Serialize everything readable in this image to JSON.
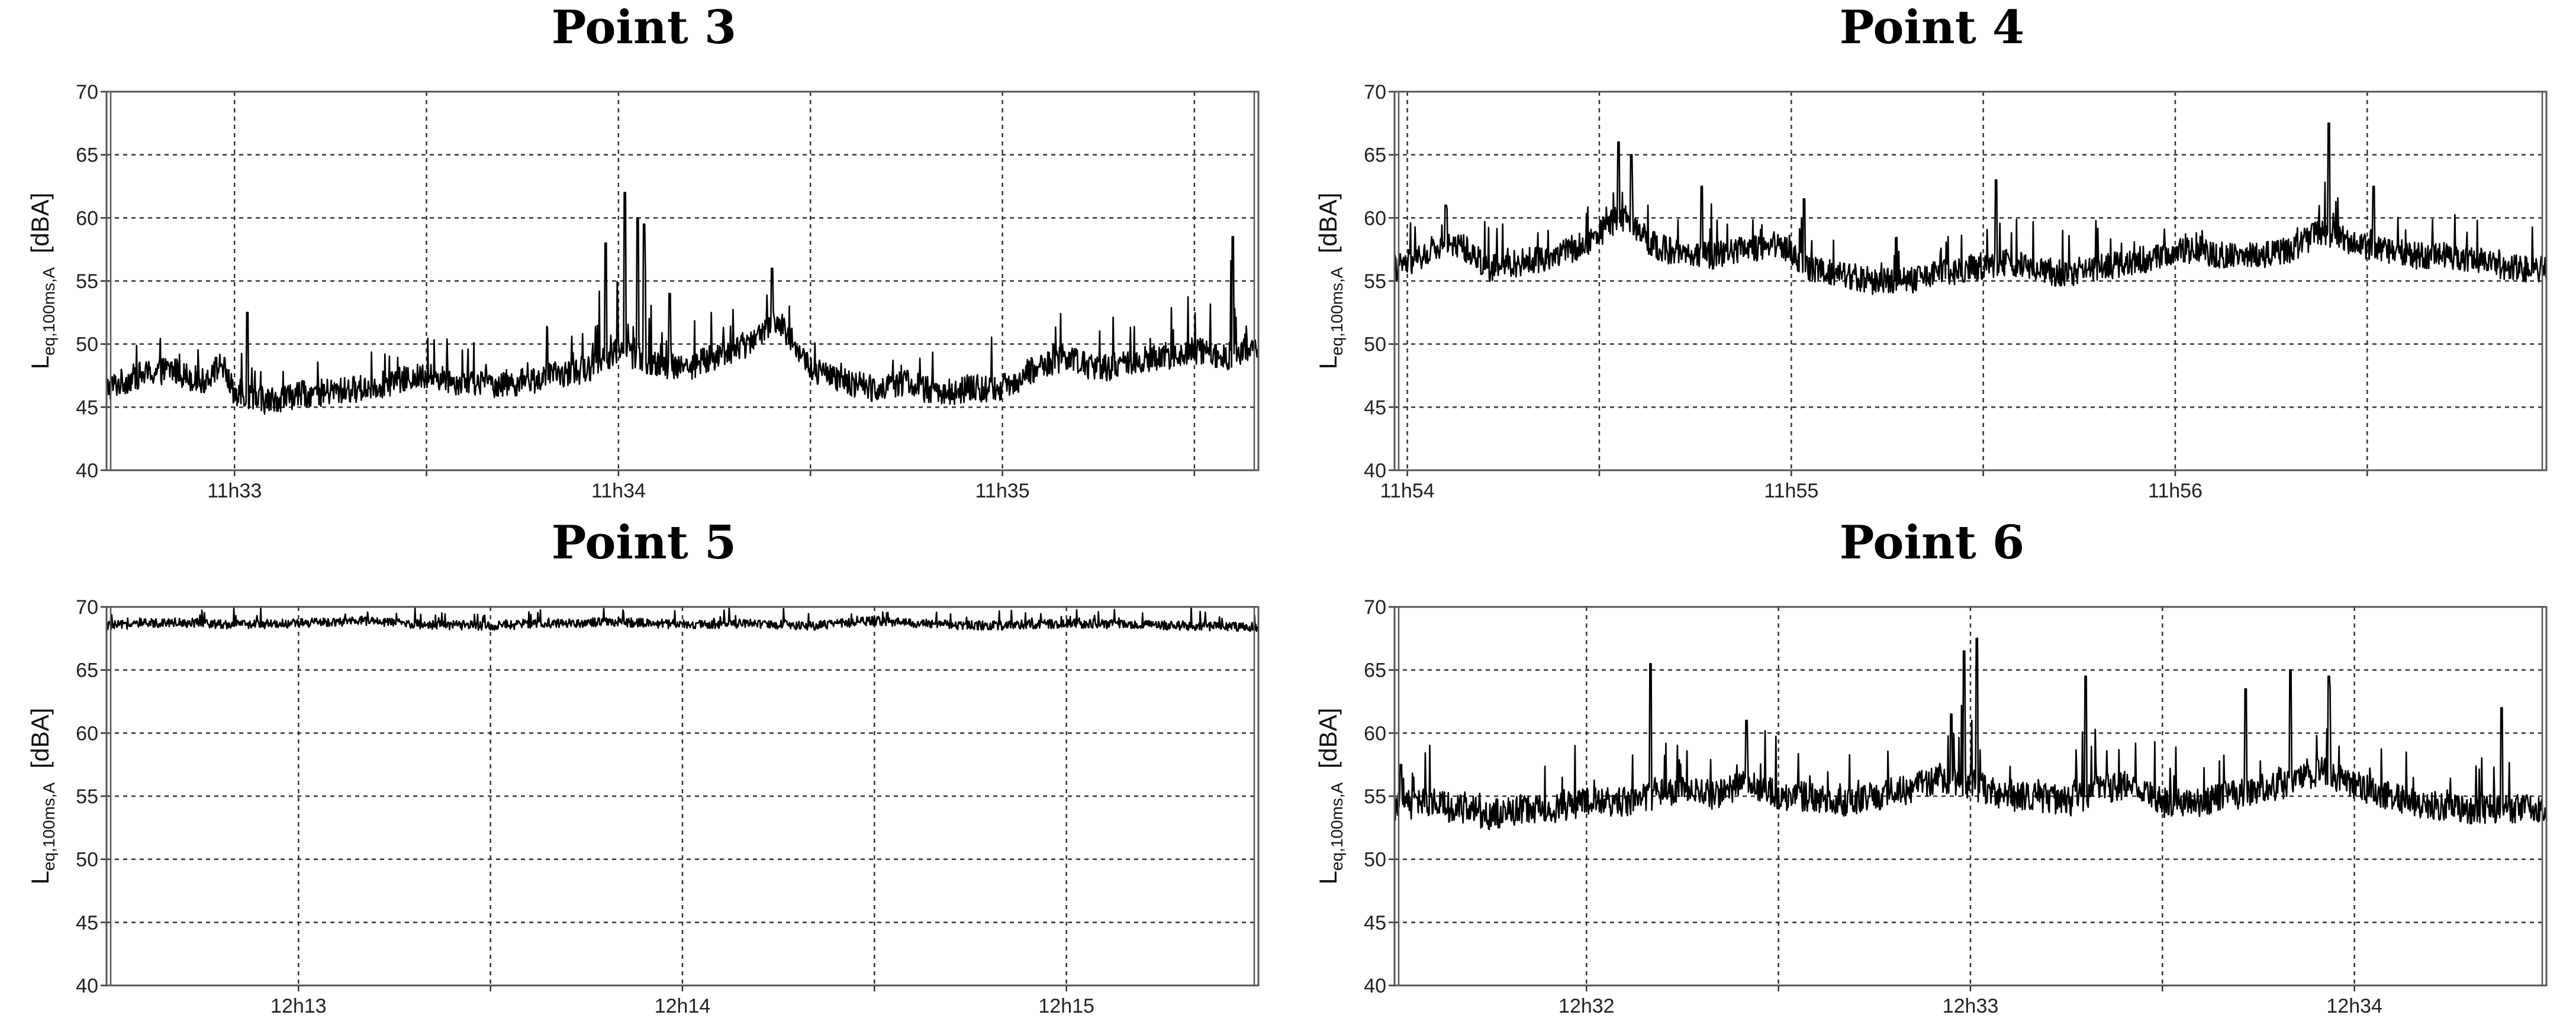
{
  "chart_data": [
    {
      "type": "line",
      "title": "Point 3",
      "ylabel_main": "L",
      "ylabel_sub": "eq,100ms,A",
      "ylabel_unit": "[dBA]",
      "ylim": [
        40,
        70
      ],
      "yticks": [
        "40",
        "45",
        "50",
        "55",
        "60",
        "65",
        "70"
      ],
      "xlim": [
        0,
        180
      ],
      "xticks": [
        {
          "pos": 20,
          "label": "11h33"
        },
        {
          "pos": 80,
          "label": "11h34"
        },
        {
          "pos": 140,
          "label": "11h35"
        }
      ],
      "grid": true,
      "series": [
        {
          "points": [
            [
              0,
              46.5
            ],
            [
              5,
              47.5
            ],
            [
              10,
              48
            ],
            [
              15,
              47
            ],
            [
              18,
              48.5
            ],
            [
              20,
              46
            ],
            [
              25,
              45.5
            ],
            [
              30,
              46
            ],
            [
              35,
              46.2
            ],
            [
              40,
              46.5
            ],
            [
              45,
              47
            ],
            [
              50,
              47.5
            ],
            [
              55,
              47
            ],
            [
              60,
              46.8
            ],
            [
              65,
              47
            ],
            [
              70,
              47.5
            ],
            [
              75,
              48
            ],
            [
              80,
              49.5
            ],
            [
              85,
              48.5
            ],
            [
              90,
              48
            ],
            [
              95,
              49
            ],
            [
              100,
              50
            ],
            [
              105,
              52
            ],
            [
              110,
              48
            ],
            [
              115,
              47
            ],
            [
              120,
              46.5
            ],
            [
              125,
              47
            ],
            [
              130,
              46
            ],
            [
              135,
              46.5
            ],
            [
              140,
              46.5
            ],
            [
              145,
              48
            ],
            [
              150,
              49
            ],
            [
              155,
              48
            ],
            [
              160,
              48.5
            ],
            [
              165,
              49
            ],
            [
              170,
              49.5
            ],
            [
              175,
              49
            ],
            [
              180,
              50
            ]
          ]
        }
      ],
      "peaks": [
        [
          22,
          52.5
        ],
        [
          78,
          58
        ],
        [
          81,
          62
        ],
        [
          83,
          60
        ],
        [
          84,
          59.5
        ],
        [
          88,
          54
        ],
        [
          104,
          56
        ],
        [
          148,
          50
        ],
        [
          176,
          58.5
        ]
      ],
      "noise": [
        0.9,
        0.9,
        0.9,
        0.9
      ]
    },
    {
      "type": "line",
      "title": "Point 4",
      "ylabel_main": "L",
      "ylabel_sub": "eq,100ms,A",
      "ylabel_unit": "[dBA]",
      "ylim": [
        40,
        70
      ],
      "yticks": [
        "40",
        "45",
        "50",
        "55",
        "60",
        "65",
        "70"
      ],
      "xlim": [
        0,
        180
      ],
      "xticks": [
        {
          "pos": 2,
          "label": "11h54"
        },
        {
          "pos": 62,
          "label": "11h55"
        },
        {
          "pos": 122,
          "label": "11h56"
        }
      ],
      "grid": true,
      "series": [
        {
          "points": [
            [
              0,
              56
            ],
            [
              5,
              57
            ],
            [
              10,
              58
            ],
            [
              15,
              56
            ],
            [
              20,
              56.5
            ],
            [
              25,
              57
            ],
            [
              30,
              58
            ],
            [
              35,
              60
            ],
            [
              40,
              58
            ],
            [
              45,
              57
            ],
            [
              50,
              57
            ],
            [
              55,
              57.5
            ],
            [
              60,
              58
            ],
            [
              65,
              56
            ],
            [
              70,
              55.5
            ],
            [
              75,
              55
            ],
            [
              80,
              55
            ],
            [
              85,
              55.5
            ],
            [
              90,
              56
            ],
            [
              95,
              56.5
            ],
            [
              100,
              56
            ],
            [
              105,
              55.5
            ],
            [
              110,
              56
            ],
            [
              115,
              56.5
            ],
            [
              120,
              57
            ],
            [
              125,
              57.5
            ],
            [
              130,
              57
            ],
            [
              135,
              57
            ],
            [
              140,
              57.5
            ],
            [
              145,
              59
            ],
            [
              150,
              58
            ],
            [
              155,
              57.5
            ],
            [
              160,
              57
            ],
            [
              165,
              57
            ],
            [
              170,
              56.5
            ],
            [
              175,
              56
            ],
            [
              180,
              56
            ]
          ]
        }
      ],
      "peaks": [
        [
          8,
          61
        ],
        [
          35,
          66
        ],
        [
          37,
          65
        ],
        [
          48,
          62.5
        ],
        [
          64,
          61.5
        ],
        [
          94,
          63
        ],
        [
          146,
          67.5
        ],
        [
          153,
          62.5
        ]
      ],
      "noise": [
        0.9,
        0.9,
        0.9,
        0.9
      ]
    },
    {
      "type": "line",
      "title": "Point 5",
      "ylabel_main": "L",
      "ylabel_sub": "eq,100ms,A",
      "ylabel_unit": "[dBA]",
      "ylim": [
        40,
        70
      ],
      "yticks": [
        "40",
        "45",
        "50",
        "55",
        "60",
        "65",
        "70"
      ],
      "xlim": [
        0,
        180
      ],
      "xticks": [
        {
          "pos": 30,
          "label": "12h13"
        },
        {
          "pos": 90,
          "label": "12h14"
        },
        {
          "pos": 150,
          "label": "12h15"
        }
      ],
      "grid": true,
      "series": [
        {
          "points": [
            [
              0,
              68.5
            ],
            [
              10,
              68.8
            ],
            [
              20,
              68.6
            ],
            [
              30,
              68.7
            ],
            [
              40,
              68.9
            ],
            [
              50,
              68.6
            ],
            [
              60,
              68.5
            ],
            [
              70,
              68.7
            ],
            [
              80,
              68.8
            ],
            [
              90,
              68.6
            ],
            [
              100,
              68.7
            ],
            [
              110,
              68.5
            ],
            [
              120,
              68.9
            ],
            [
              130,
              68.6
            ],
            [
              140,
              68.5
            ],
            [
              150,
              68.7
            ],
            [
              160,
              68.6
            ],
            [
              170,
              68.5
            ],
            [
              180,
              68.4
            ]
          ]
        }
      ],
      "peaks": [],
      "noise": [
        0.3,
        0.3,
        0.3,
        0.3
      ]
    },
    {
      "type": "line",
      "title": "Point 6",
      "ylabel_main": "L",
      "ylabel_sub": "eq,100ms,A",
      "ylabel_unit": "[dBA]",
      "ylim": [
        40,
        70
      ],
      "yticks": [
        "40",
        "45",
        "50",
        "55",
        "60",
        "65",
        "70"
      ],
      "xlim": [
        0,
        180
      ],
      "xticks": [
        {
          "pos": 30,
          "label": "12h32"
        },
        {
          "pos": 90,
          "label": "12h33"
        },
        {
          "pos": 150,
          "label": "12h34"
        }
      ],
      "grid": true,
      "series": [
        {
          "points": [
            [
              0,
              54
            ],
            [
              5,
              54.5
            ],
            [
              10,
              54
            ],
            [
              15,
              53.5
            ],
            [
              20,
              54
            ],
            [
              25,
              54
            ],
            [
              30,
              54.5
            ],
            [
              35,
              54.5
            ],
            [
              40,
              55
            ],
            [
              45,
              55.5
            ],
            [
              50,
              55
            ],
            [
              55,
              56
            ],
            [
              60,
              55
            ],
            [
              65,
              55
            ],
            [
              70,
              54.5
            ],
            [
              75,
              55
            ],
            [
              80,
              55.5
            ],
            [
              85,
              56.5
            ],
            [
              90,
              56
            ],
            [
              95,
              55
            ],
            [
              100,
              55
            ],
            [
              105,
              54.5
            ],
            [
              110,
              55.5
            ],
            [
              115,
              56
            ],
            [
              120,
              54.5
            ],
            [
              125,
              54.5
            ],
            [
              130,
              55
            ],
            [
              135,
              55.5
            ],
            [
              140,
              56
            ],
            [
              145,
              57
            ],
            [
              150,
              56
            ],
            [
              155,
              55
            ],
            [
              160,
              54.5
            ],
            [
              165,
              54
            ],
            [
              170,
              54
            ],
            [
              175,
              54
            ],
            [
              180,
              54
            ]
          ]
        }
      ],
      "peaks": [
        [
          1,
          57.5
        ],
        [
          40,
          65.5
        ],
        [
          55,
          61
        ],
        [
          87,
          61.5
        ],
        [
          89,
          66.5
        ],
        [
          91,
          67.5
        ],
        [
          108,
          64.5
        ],
        [
          133,
          63.5
        ],
        [
          140,
          65
        ],
        [
          146,
          64.5
        ],
        [
          173,
          62
        ]
      ],
      "noise": [
        1.0,
        1.0,
        1.0,
        1.0
      ]
    }
  ]
}
